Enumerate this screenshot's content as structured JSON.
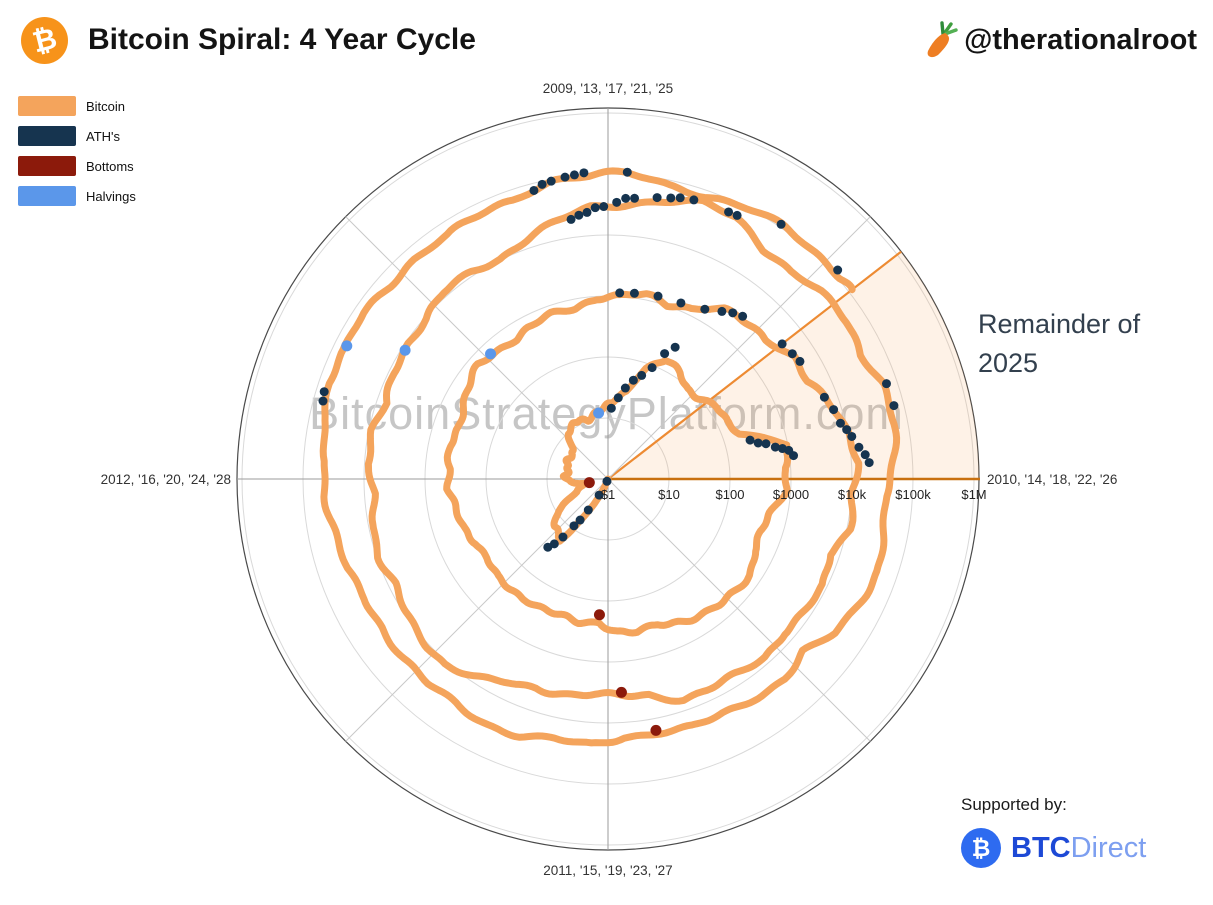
{
  "header": {
    "title": "Bitcoin Spiral: 4 Year Cycle",
    "author": "@therationalroot",
    "logo_glyph": "₿"
  },
  "legend": [
    {
      "label": "Bitcoin",
      "color": "#F4A45C"
    },
    {
      "label": "ATH's",
      "color": "#16344F"
    },
    {
      "label": "Bottoms",
      "color": "#8C1A0B"
    },
    {
      "label": "Halvings",
      "color": "#5B97EA"
    }
  ],
  "watermark": "BitcoinStrategyPlatform.com",
  "annotation": {
    "line1": "Remainder of",
    "line2": "2025"
  },
  "supported_by": {
    "label": "Supported by:",
    "brand_bold": "BTC",
    "brand_light": "Direct",
    "brand_glyph": "₿"
  },
  "chart_data": {
    "type": "line",
    "subtype": "polar_log_spiral",
    "title": "Bitcoin Spiral: 4 Year Cycle",
    "angular_axis": {
      "direction": "clockwise",
      "cycle_years": 4,
      "degrees_per_year": 90,
      "labels": [
        {
          "position": "top",
          "text": "2009, '13, '17, '21, '25"
        },
        {
          "position": "right",
          "text": "2010, '14, '18, '22, '26"
        },
        {
          "position": "bottom",
          "text": "2011, '15, '19, '23, '27"
        },
        {
          "position": "left",
          "text": "2012, '16, '20, '24, '28"
        }
      ]
    },
    "radial_axis": {
      "scale": "log10",
      "unit": "USD",
      "center_value": 1,
      "max_value": 1000000,
      "ticks": [
        {
          "label": "$1",
          "value": 1
        },
        {
          "label": "$10",
          "value": 10
        },
        {
          "label": "$100",
          "value": 100
        },
        {
          "label": "$1000",
          "value": 1000
        },
        {
          "label": "$10k",
          "value": 10000
        },
        {
          "label": "$100k",
          "value": 100000
        },
        {
          "label": "$1M",
          "value": 1000000
        }
      ]
    },
    "series": {
      "name": "Bitcoin",
      "color": "#F4A45C",
      "points": [
        [
          2010.54,
          0.07
        ],
        [
          2010.63,
          0.07
        ],
        [
          2010.71,
          0.06
        ],
        [
          2010.79,
          0.12
        ],
        [
          2010.88,
          0.22
        ],
        [
          2010.96,
          0.3
        ],
        [
          2011.04,
          0.45
        ],
        [
          2011.13,
          0.95
        ],
        [
          2011.21,
          0.85
        ],
        [
          2011.29,
          1.6
        ],
        [
          2011.38,
          7.0
        ],
        [
          2011.42,
          22
        ],
        [
          2011.46,
          17
        ],
        [
          2011.54,
          13.5
        ],
        [
          2011.63,
          9.2
        ],
        [
          2011.71,
          5.0
        ],
        [
          2011.79,
          3.3
        ],
        [
          2011.88,
          2.4
        ],
        [
          2011.96,
          4.0
        ],
        [
          2012.04,
          5.4
        ],
        [
          2012.13,
          4.9
        ],
        [
          2012.21,
          4.9
        ],
        [
          2012.29,
          5.0
        ],
        [
          2012.38,
          5.1
        ],
        [
          2012.46,
          6.6
        ],
        [
          2012.54,
          9.4
        ],
        [
          2012.63,
          10.5
        ],
        [
          2012.71,
          12.3
        ],
        [
          2012.79,
          11.2
        ],
        [
          2012.88,
          12.4
        ],
        [
          2012.96,
          13.4
        ],
        [
          2013.04,
          19
        ],
        [
          2013.13,
          31
        ],
        [
          2013.21,
          80
        ],
        [
          2013.29,
          140
        ],
        [
          2013.38,
          125
        ],
        [
          2013.46,
          98
        ],
        [
          2013.54,
          100
        ],
        [
          2013.63,
          130
        ],
        [
          2013.71,
          140
        ],
        [
          2013.79,
          200
        ],
        [
          2013.88,
          1050
        ],
        [
          2013.96,
          750
        ],
        [
          2014.04,
          810
        ],
        [
          2014.13,
          560
        ],
        [
          2014.21,
          460
        ],
        [
          2014.29,
          445
        ],
        [
          2014.38,
          620
        ],
        [
          2014.46,
          635
        ],
        [
          2014.54,
          590
        ],
        [
          2014.63,
          480
        ],
        [
          2014.71,
          390
        ],
        [
          2014.79,
          340
        ],
        [
          2014.88,
          375
        ],
        [
          2014.96,
          320
        ],
        [
          2015.04,
          215
        ],
        [
          2015.13,
          255
        ],
        [
          2015.21,
          245
        ],
        [
          2015.29,
          235
        ],
        [
          2015.38,
          230
        ],
        [
          2015.46,
          262
        ],
        [
          2015.54,
          282
        ],
        [
          2015.63,
          230
        ],
        [
          2015.71,
          237
        ],
        [
          2015.79,
          312
        ],
        [
          2015.88,
          375
        ],
        [
          2015.96,
          430
        ],
        [
          2016.04,
          370
        ],
        [
          2016.13,
          437
        ],
        [
          2016.21,
          415
        ],
        [
          2016.29,
          448
        ],
        [
          2016.38,
          530
        ],
        [
          2016.46,
          670
        ],
        [
          2016.54,
          625
        ],
        [
          2016.63,
          575
        ],
        [
          2016.71,
          610
        ],
        [
          2016.79,
          700
        ],
        [
          2016.88,
          742
        ],
        [
          2016.96,
          960
        ],
        [
          2017.04,
          970
        ],
        [
          2017.13,
          1180
        ],
        [
          2017.21,
          1080
        ],
        [
          2017.29,
          1350
        ],
        [
          2017.38,
          2290
        ],
        [
          2017.46,
          2480
        ],
        [
          2017.54,
          2870
        ],
        [
          2017.63,
          4700
        ],
        [
          2017.71,
          4340
        ],
        [
          2017.79,
          6440
        ],
        [
          2017.88,
          10200
        ],
        [
          2017.96,
          14100
        ],
        [
          2018.04,
          10200
        ],
        [
          2018.13,
          10400
        ],
        [
          2018.21,
          6940
        ],
        [
          2018.29,
          9240
        ],
        [
          2018.38,
          7490
        ],
        [
          2018.46,
          6400
        ],
        [
          2018.54,
          7780
        ],
        [
          2018.63,
          7040
        ],
        [
          2018.71,
          6620
        ],
        [
          2018.79,
          6320
        ],
        [
          2018.88,
          4020
        ],
        [
          2018.96,
          3740
        ],
        [
          2019.04,
          3460
        ],
        [
          2019.13,
          3850
        ],
        [
          2019.21,
          4100
        ],
        [
          2019.29,
          5350
        ],
        [
          2019.38,
          8570
        ],
        [
          2019.46,
          10800
        ],
        [
          2019.54,
          10100
        ],
        [
          2019.63,
          9630
        ],
        [
          2019.71,
          8310
        ],
        [
          2019.79,
          9200
        ],
        [
          2019.88,
          7570
        ],
        [
          2019.96,
          7190
        ],
        [
          2020.04,
          9350
        ],
        [
          2020.13,
          8600
        ],
        [
          2020.21,
          6440
        ],
        [
          2020.29,
          8660
        ],
        [
          2020.38,
          9460
        ],
        [
          2020.46,
          9140
        ],
        [
          2020.54,
          11350
        ],
        [
          2020.63,
          11660
        ],
        [
          2020.71,
          10780
        ],
        [
          2020.79,
          13780
        ],
        [
          2020.88,
          19700
        ],
        [
          2020.96,
          29000
        ],
        [
          2021.04,
          33100
        ],
        [
          2021.13,
          45100
        ],
        [
          2021.21,
          58800
        ],
        [
          2021.29,
          57800
        ],
        [
          2021.38,
          37300
        ],
        [
          2021.46,
          35000
        ],
        [
          2021.54,
          41600
        ],
        [
          2021.63,
          47200
        ],
        [
          2021.71,
          43800
        ],
        [
          2021.79,
          61300
        ],
        [
          2021.88,
          57000
        ],
        [
          2021.96,
          46300
        ],
        [
          2022.04,
          38500
        ],
        [
          2022.13,
          43200
        ],
        [
          2022.21,
          45500
        ],
        [
          2022.29,
          37700
        ],
        [
          2022.38,
          31800
        ],
        [
          2022.46,
          19800
        ],
        [
          2022.54,
          23300
        ],
        [
          2022.63,
          20000
        ],
        [
          2022.71,
          19400
        ],
        [
          2022.79,
          20500
        ],
        [
          2022.88,
          17200
        ],
        [
          2022.96,
          16500
        ],
        [
          2023.04,
          23100
        ],
        [
          2023.13,
          23100
        ],
        [
          2023.21,
          28500
        ],
        [
          2023.29,
          29300
        ],
        [
          2023.38,
          27200
        ],
        [
          2023.46,
          30500
        ],
        [
          2023.54,
          29200
        ],
        [
          2023.63,
          25900
        ],
        [
          2023.71,
          27000
        ],
        [
          2023.79,
          34700
        ],
        [
          2023.88,
          37700
        ],
        [
          2023.96,
          42300
        ],
        [
          2024.04,
          42600
        ],
        [
          2024.13,
          61200
        ],
        [
          2024.21,
          71300
        ],
        [
          2024.29,
          60600
        ],
        [
          2024.38,
          67500
        ],
        [
          2024.46,
          62700
        ],
        [
          2024.54,
          64600
        ],
        [
          2024.63,
          59000
        ],
        [
          2024.71,
          63300
        ],
        [
          2024.79,
          70200
        ],
        [
          2024.88,
          96400
        ],
        [
          2024.96,
          93400
        ],
        [
          2025.04,
          102400
        ],
        [
          2025.13,
          84300
        ],
        [
          2025.21,
          82500
        ],
        [
          2025.29,
          94200
        ],
        [
          2025.38,
          104600
        ],
        [
          2025.46,
          107200
        ],
        [
          2025.54,
          117500
        ],
        [
          2025.58,
          116000
        ]
      ]
    },
    "ath": {
      "name": "ATH's",
      "color": "#16344F",
      "points": [
        [
          2011.27,
          1.1
        ],
        [
          2011.32,
          2.0
        ],
        [
          2011.36,
          4.0
        ],
        [
          2011.38,
          6.5
        ],
        [
          2011.4,
          8.9
        ],
        [
          2011.42,
          16
        ],
        [
          2011.44,
          24
        ],
        [
          2011.46,
          31
        ],
        [
          2013.03,
          14.5
        ],
        [
          2013.08,
          22
        ],
        [
          2013.12,
          33
        ],
        [
          2013.16,
          47
        ],
        [
          2013.2,
          61
        ],
        [
          2013.24,
          92
        ],
        [
          2013.27,
          180
        ],
        [
          2013.3,
          266
        ],
        [
          2013.83,
          260
        ],
        [
          2013.85,
          340
        ],
        [
          2013.86,
          450
        ],
        [
          2013.88,
          620
        ],
        [
          2013.89,
          800
        ],
        [
          2013.9,
          1000
        ],
        [
          2013.92,
          1163
        ],
        [
          2017.04,
          1140
        ],
        [
          2017.09,
          1190
        ],
        [
          2017.17,
          1280
        ],
        [
          2017.25,
          1330
        ],
        [
          2017.33,
          1600
        ],
        [
          2017.38,
          2100
        ],
        [
          2017.41,
          2550
        ],
        [
          2017.44,
          2900
        ],
        [
          2017.58,
          4100
        ],
        [
          2017.62,
          4500
        ],
        [
          2017.65,
          4900
        ],
        [
          2017.77,
          6200
        ],
        [
          2017.81,
          7400
        ],
        [
          2017.85,
          8300
        ],
        [
          2017.87,
          9900
        ],
        [
          2017.89,
          11400
        ],
        [
          2017.92,
          14000
        ],
        [
          2017.94,
          17200
        ],
        [
          2017.96,
          19500
        ],
        [
          2020.91,
          19900
        ],
        [
          2020.93,
          22400
        ],
        [
          2020.95,
          24200
        ],
        [
          2020.97,
          28400
        ],
        [
          2020.99,
          29300
        ],
        [
          2021.02,
          34500
        ],
        [
          2021.04,
          40700
        ],
        [
          2021.06,
          41900
        ],
        [
          2021.11,
          48200
        ],
        [
          2021.14,
          52600
        ],
        [
          2021.16,
          57500
        ],
        [
          2021.19,
          61200
        ],
        [
          2021.27,
          63500
        ],
        [
          2021.29,
          64800
        ],
        [
          2021.79,
          66900
        ],
        [
          2021.84,
          69000
        ],
        [
          2024.17,
          69800
        ],
        [
          2024.19,
          73700
        ],
        [
          2024.84,
          76500
        ],
        [
          2024.86,
          89000
        ],
        [
          2024.88,
          93400
        ],
        [
          2024.91,
          99700
        ],
        [
          2024.93,
          103600
        ],
        [
          2024.95,
          108300
        ],
        [
          2025.04,
          109400
        ],
        [
          2025.38,
          111900
        ],
        [
          2025.53,
          123200
        ]
      ]
    },
    "bottoms": {
      "name": "Bottoms",
      "color": "#8C1A0B",
      "points": [
        [
          2011.88,
          2.05
        ],
        [
          2015.04,
          170
        ],
        [
          2018.96,
          3200
        ],
        [
          2022.88,
          15700
        ]
      ]
    },
    "halvings": {
      "name": "Halvings",
      "color": "#5B97EA",
      "points": [
        [
          2012.91,
          12.4
        ],
        [
          2016.52,
          650
        ],
        [
          2020.36,
          8700
        ],
        [
          2024.3,
          64000
        ]
      ]
    },
    "remainder_wedge": {
      "label": "Remainder of 2025",
      "from_year": 2025.58,
      "to_year": 2026.0,
      "fill": "#F7A254",
      "fill_opacity": 0.14,
      "edge_line_color": "#ED8B33",
      "axis_line_color": "#C8700F"
    },
    "grid": {
      "circle_color": "#d9d9d9",
      "frame_color": "#4a4a4a",
      "spoke_color": "#9b9b9b",
      "diagonal_color": "#c9c9c9"
    }
  }
}
